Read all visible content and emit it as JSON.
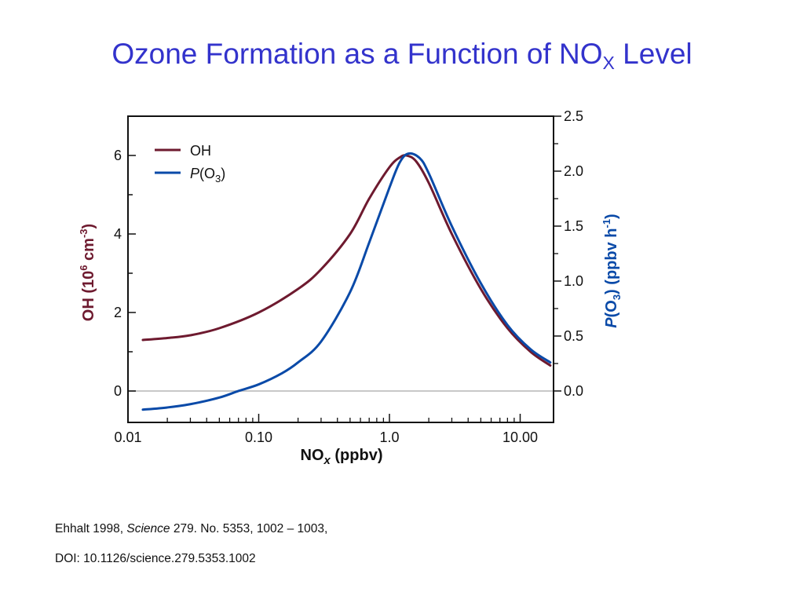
{
  "title": {
    "main": "Ozone Formation as a Function of NO",
    "sub": "X",
    "tail": " Level"
  },
  "colors": {
    "title": "#3333cc",
    "oh": "#6e1a2f",
    "po3": "#0a4aa8",
    "zero_line": "#c8c8c8"
  },
  "citation": {
    "line1_prefix": "Ehhalt 1998, ",
    "line1_journal": "Science",
    "line1_suffix": " 279. No. 5353, 1002 – 1003,",
    "line2": "DOI: 10.1126/science.279.5353.1002"
  },
  "chart_data": {
    "type": "line",
    "x_scale": "log",
    "xlim": [
      0.01,
      18
    ],
    "xlabel": "NOx (ppbv)",
    "ylabel_left": "OH (10^6 cm^-3)",
    "ylabel_right": "P(O3) (ppbv h^-1)",
    "ylim_left": [
      -0.8,
      7
    ],
    "ylim_right": [
      -0.286,
      2.5
    ],
    "x_ticks": [
      {
        "value": 0.01,
        "label": "0.01"
      },
      {
        "value": 0.1,
        "label": "0.10"
      },
      {
        "value": 1.0,
        "label": "1.0"
      },
      {
        "value": 10.0,
        "label": "10.00"
      }
    ],
    "y_ticks_left": [
      {
        "value": 0,
        "label": "0"
      },
      {
        "value": 2,
        "label": "2"
      },
      {
        "value": 4,
        "label": "4"
      },
      {
        "value": 6,
        "label": "6"
      }
    ],
    "y_ticks_right": [
      {
        "value": 0.0,
        "label": "0.0"
      },
      {
        "value": 0.5,
        "label": "0.5"
      },
      {
        "value": 1.0,
        "label": "1.0"
      },
      {
        "value": 1.5,
        "label": "1.5"
      },
      {
        "value": 2.0,
        "label": "2.0"
      },
      {
        "value": 2.5,
        "label": "2.5"
      }
    ],
    "legend": {
      "position": "top-left",
      "entries": [
        "OH",
        "P(O3)"
      ]
    },
    "grid": false,
    "series": [
      {
        "name": "OH",
        "axis": "left",
        "x": [
          0.013,
          0.02,
          0.03,
          0.05,
          0.1,
          0.2,
          0.3,
          0.5,
          0.7,
          1.0,
          1.2,
          1.35,
          1.6,
          2.0,
          3.0,
          5.0,
          8.0,
          12.0,
          17.0
        ],
        "y": [
          1.3,
          1.35,
          1.42,
          1.6,
          2.0,
          2.6,
          3.1,
          4.0,
          4.9,
          5.7,
          5.95,
          6.0,
          5.85,
          5.3,
          4.0,
          2.6,
          1.6,
          1.0,
          0.65
        ]
      },
      {
        "name": "P(O3)",
        "axis": "right",
        "x": [
          0.013,
          0.02,
          0.03,
          0.05,
          0.07,
          0.1,
          0.15,
          0.2,
          0.3,
          0.5,
          0.7,
          1.0,
          1.2,
          1.4,
          1.7,
          2.0,
          3.0,
          5.0,
          8.0,
          12.0,
          17.0
        ],
        "y": [
          -0.17,
          -0.15,
          -0.12,
          -0.06,
          0.0,
          0.06,
          0.16,
          0.26,
          0.45,
          0.9,
          1.35,
          1.85,
          2.08,
          2.16,
          2.12,
          1.98,
          1.5,
          0.98,
          0.6,
          0.38,
          0.26
        ]
      }
    ]
  }
}
